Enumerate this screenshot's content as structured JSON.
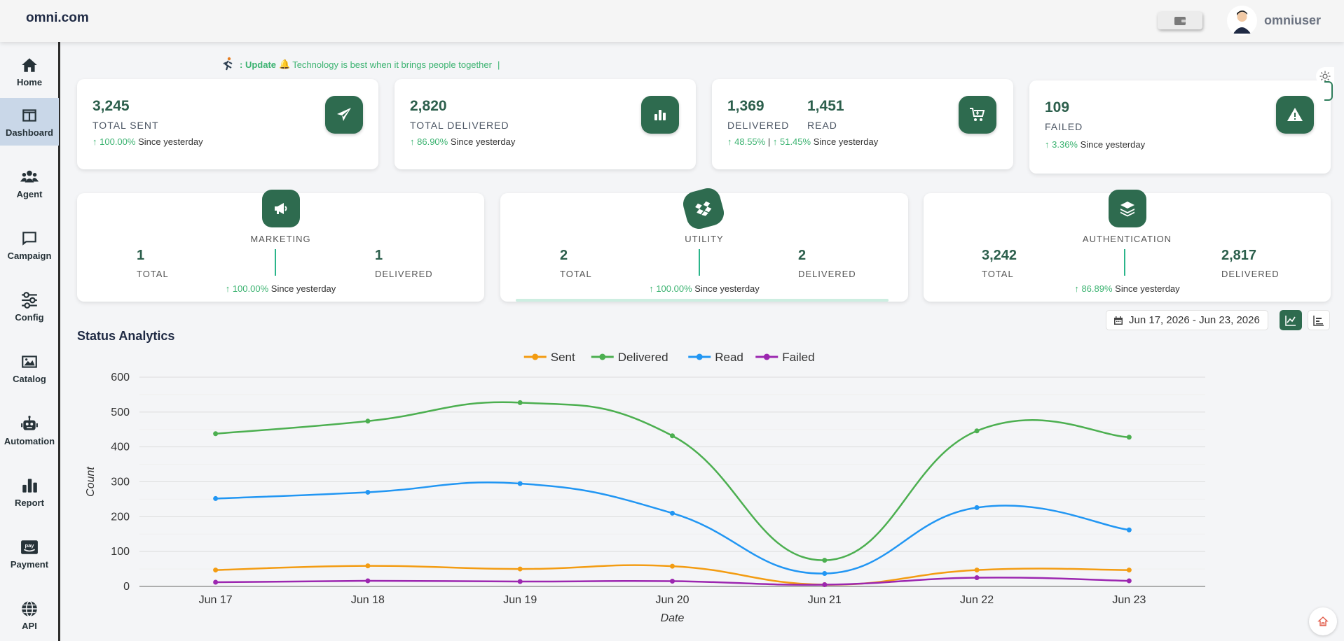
{
  "header": {
    "brand": "omni.com",
    "username": "omniuser"
  },
  "sidebar": {
    "items": [
      {
        "label": "Home",
        "icon": "home-icon"
      },
      {
        "label": "Dashboard",
        "icon": "dashboard-icon",
        "active": true
      },
      {
        "label": "Agent",
        "icon": "users-icon"
      },
      {
        "label": "Campaign",
        "icon": "chat-icon"
      },
      {
        "label": "Config",
        "icon": "sliders-icon"
      },
      {
        "label": "Catalog",
        "icon": "image-icon"
      },
      {
        "label": "Automation",
        "icon": "robot-icon"
      },
      {
        "label": "Report",
        "icon": "bar-chart-icon"
      },
      {
        "label": "Payment",
        "icon": "pay-icon"
      },
      {
        "label": "API",
        "icon": "globe-icon"
      }
    ]
  },
  "ticker": {
    "prefix": ": Update",
    "message": "Technology is best when it brings people together",
    "separator": "|"
  },
  "stats": {
    "sent": {
      "value": "3,245",
      "label": "TOTAL SENT",
      "pct": "100.00%",
      "since": "Since yesterday"
    },
    "delivered": {
      "value": "2,820",
      "label": "TOTAL DELIVERED",
      "pct": "86.90%",
      "since": "Since yesterday"
    },
    "read": {
      "value_delivered": "1,369",
      "label_delivered": "DELIVERED",
      "value_read": "1,451",
      "label_read": "READ",
      "pct_delivered": "48.55%",
      "divider": "|",
      "pct_read": "51.45%",
      "since": "Since yesterday"
    },
    "failed": {
      "value": "109",
      "label": "FAILED",
      "pct": "3.36%",
      "since": "Since yesterday"
    }
  },
  "categories": {
    "marketing": {
      "title": "MARKETING",
      "total": "1",
      "total_label": "TOTAL",
      "delivered": "1",
      "delivered_label": "DELIVERED",
      "pct": "100.00%",
      "since": "Since yesterday"
    },
    "utility": {
      "title": "UTILITY",
      "total": "2",
      "total_label": "TOTAL",
      "delivered": "2",
      "delivered_label": "DELIVERED",
      "pct": "100.00%",
      "since": "Since yesterday"
    },
    "authentication": {
      "title": "AUTHENTICATION",
      "total": "3,242",
      "total_label": "TOTAL",
      "delivered": "2,817",
      "delivered_label": "DELIVERED",
      "pct": "86.89%",
      "since": "Since yesterday"
    }
  },
  "analytics": {
    "title": "Status Analytics",
    "date_range": "Jun 17, 2026 - Jun 23, 2026"
  },
  "colors": {
    "accent": "#2e6b4f",
    "positive": "#3cb371",
    "sent": "#f39c12",
    "delivered": "#4caf50",
    "read": "#2196f3",
    "failed": "#9c27b0"
  },
  "chart_data": {
    "type": "line",
    "title": "",
    "xlabel": "Date",
    "ylabel": "Count",
    "ylim": [
      0,
      600
    ],
    "yticks": [
      0,
      100,
      200,
      300,
      400,
      500,
      600
    ],
    "categories": [
      "Jun 17",
      "Jun 18",
      "Jun 19",
      "Jun 20",
      "Jun 21",
      "Jun 22",
      "Jun 23"
    ],
    "legend": "top-center",
    "grid": true,
    "series": [
      {
        "name": "Sent",
        "color": "#f39c12",
        "values": [
          47,
          59,
          50,
          58,
          5,
          47,
          47
        ]
      },
      {
        "name": "Delivered",
        "color": "#4caf50",
        "values": [
          438,
          474,
          527,
          432,
          75,
          446,
          428
        ]
      },
      {
        "name": "Read",
        "color": "#2196f3",
        "values": [
          252,
          270,
          295,
          210,
          37,
          226,
          162
        ]
      },
      {
        "name": "Failed",
        "color": "#9c27b0",
        "values": [
          12,
          16,
          14,
          15,
          5,
          25,
          16
        ]
      }
    ]
  }
}
